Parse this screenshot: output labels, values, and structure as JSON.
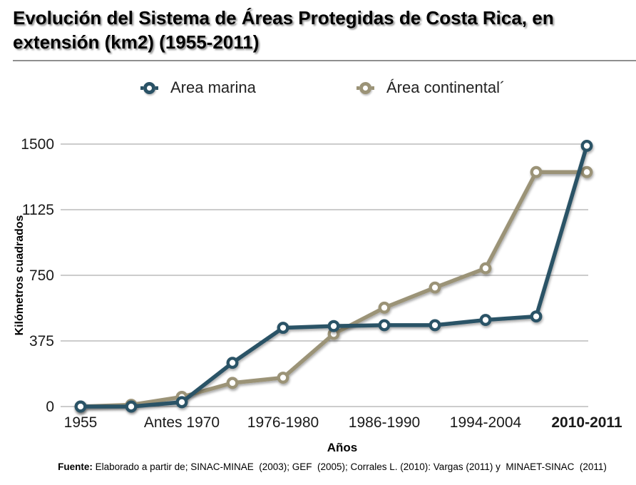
{
  "title": {
    "line1": "Evolución del Sistema de Áreas Protegidas de Costa Rica, en",
    "line2": "extensión (km2) (1955-2011)"
  },
  "legend": {
    "items": [
      {
        "label": "Area marina",
        "color": "#2A5266"
      },
      {
        "label": "Área continental´",
        "color": "#9B9377"
      }
    ]
  },
  "chart_data": {
    "type": "line",
    "title": "Evolución del Sistema de Áreas Protegidas de Costa Rica, en extensión (km2) (1955-2011)",
    "xlabel": "Años",
    "ylabel": "Kilómetros cuadrados",
    "y_ticks": [
      0,
      375,
      750,
      1125,
      1500
    ],
    "ylim": [
      0,
      1500
    ],
    "grid": "horizontal",
    "legend_position": "top",
    "x_tick_labels": [
      "1955",
      "Antes 1970",
      "1976-1980",
      "1986-1990",
      "1994-2004",
      "2010-2011"
    ],
    "points_per_series": 11,
    "x_tick_point_indexes": [
      0,
      2,
      4,
      6,
      8,
      10
    ],
    "series": [
      {
        "name": "Area marina",
        "color": "#2A5266",
        "values": [
          0,
          0,
          25,
          250,
          450,
          460,
          465,
          465,
          495,
          515,
          1490
        ]
      },
      {
        "name": "Área continental´",
        "color": "#9B9377",
        "values": [
          0,
          10,
          55,
          135,
          165,
          415,
          565,
          680,
          790,
          1340,
          1340
        ]
      }
    ]
  },
  "footer": {
    "label": "Fuente:",
    "text": " Elaborado a partir de; SINAC-MINAE  (2003); GEF  (2005); Corrales L. (2010): Vargas (2011) y  MINAET-SINAC  (2011)"
  }
}
